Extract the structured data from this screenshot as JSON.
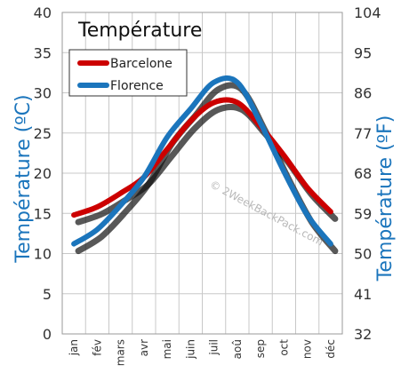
{
  "chart_data": {
    "type": "line",
    "title": "Température",
    "categories": [
      "jan",
      "fév",
      "mars",
      "avr",
      "mai",
      "juin",
      "juil",
      "aoû",
      "sep",
      "oct",
      "nov",
      "déc"
    ],
    "series": [
      {
        "name": "Barcelone",
        "color": "#cc0000",
        "values": [
          14.8,
          15.8,
          17.5,
          19.5,
          23,
          26.5,
          28.8,
          28.8,
          25.8,
          22.2,
          18.2,
          15.2
        ]
      },
      {
        "name": "Florence",
        "color": "#1b75bc",
        "values": [
          11.2,
          13,
          16,
          19.5,
          24.5,
          28,
          31.3,
          31.3,
          26.2,
          20.2,
          14.8,
          11.2
        ]
      }
    ],
    "ylabel_left": "Température  (ºC)",
    "ylabel_right": "Température (ºF)",
    "ylim": [
      0,
      40
    ],
    "yticks_left": [
      "0",
      "5",
      "10",
      "15",
      "20",
      "25",
      "30",
      "35",
      "40"
    ],
    "yticks_right": [
      "32",
      "41",
      "50",
      "59",
      "68",
      "77",
      "86",
      "95",
      "104"
    ],
    "grid": true,
    "legend_position": "top-left",
    "watermark": "© 2WeekBackPack.com"
  }
}
